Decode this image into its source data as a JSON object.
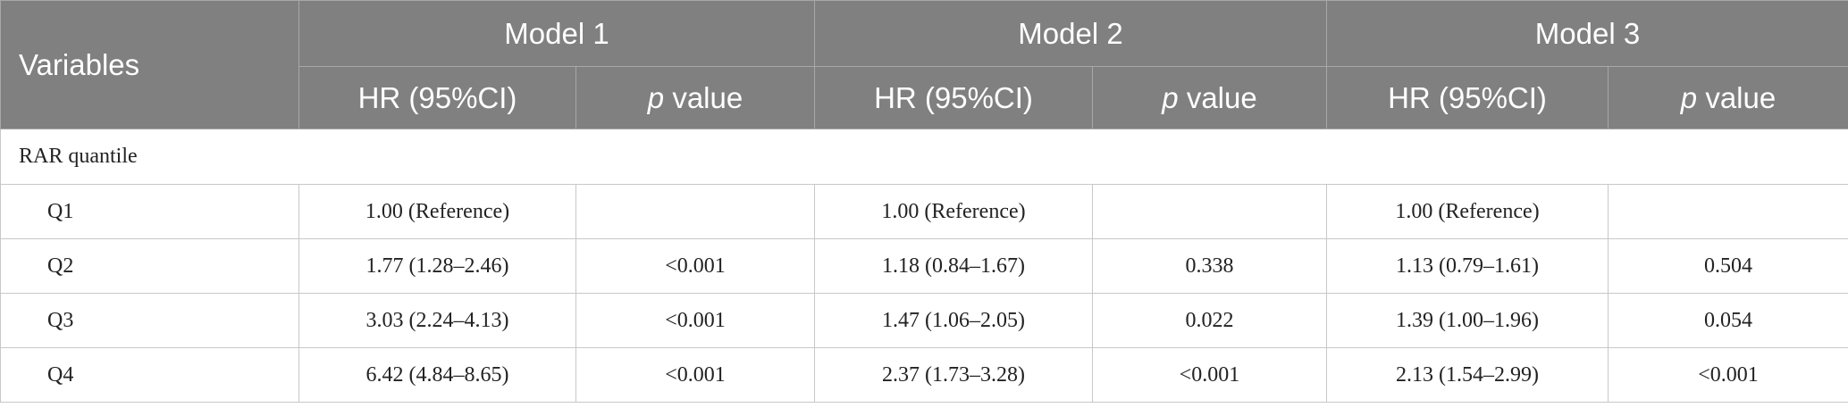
{
  "table": {
    "header": {
      "variables": "Variables",
      "models": [
        {
          "name": "Model 1",
          "hr": "HR (95%CI)",
          "p_italic": "p",
          "p_rest": "value"
        },
        {
          "name": "Model 2",
          "hr": "HR (95%CI)",
          "p_italic": "p",
          "p_rest": "value"
        },
        {
          "name": "Model 3",
          "hr": "HR (95%CI)",
          "p_italic": "p",
          "p_rest": "value"
        }
      ]
    },
    "section": "RAR quantile",
    "rows": [
      {
        "label": "Q1",
        "cells": [
          "1.00 (Reference)",
          null,
          "1.00 (Reference)",
          null,
          "1.00 (Reference)",
          null
        ]
      },
      {
        "label": "Q2",
        "cells": [
          "1.77 (1.28–2.46)",
          "<0.001",
          "1.18 (0.84–1.67)",
          "0.338",
          "1.13 (0.79–1.61)",
          "0.504"
        ]
      },
      {
        "label": "Q3",
        "cells": [
          "3.03 (2.24–4.13)",
          "<0.001",
          "1.47 (1.06–2.05)",
          "0.022",
          "1.39 (1.00–1.96)",
          "0.054"
        ]
      },
      {
        "label": "Q4",
        "cells": [
          "6.42 (4.84–8.65)",
          "<0.001",
          "2.37 (1.73–3.28)",
          "<0.001",
          "2.13 (1.54–2.99)",
          "<0.001"
        ]
      }
    ]
  }
}
